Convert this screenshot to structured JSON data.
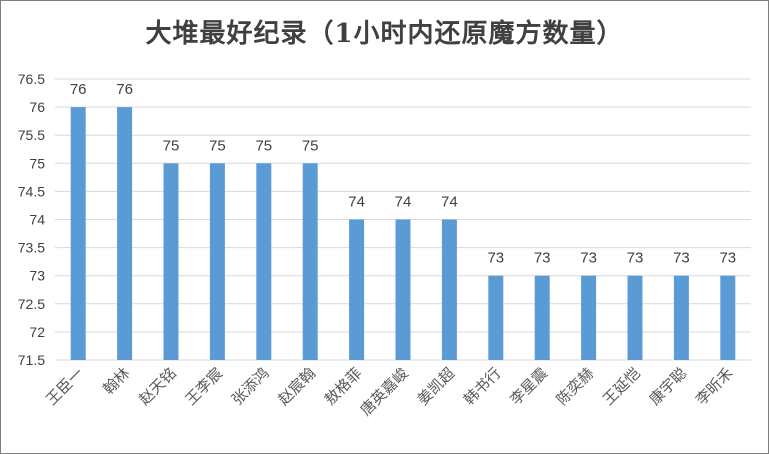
{
  "chart_data": {
    "type": "bar",
    "title": "大堆最好纪录（1小时内还原魔方数量）",
    "xlabel": "",
    "ylabel": "",
    "ylim": [
      71.5,
      76.5
    ],
    "yticks": [
      "71.5",
      "72",
      "72.5",
      "73",
      "73.5",
      "74",
      "74.5",
      "75",
      "75.5",
      "76",
      "76.5"
    ],
    "grid": true,
    "legend": "none",
    "bar_color": "#5b9bd5",
    "categories": [
      "王臣一",
      "翰林",
      "赵天铭",
      "王李宸",
      "张添鸿",
      "赵宸翰",
      "敖格菲",
      "唐英嘉峻",
      "姜凯超",
      "韩书行",
      "李星震",
      "陈奕赫",
      "王延恺",
      "康宇聪",
      "李昕禾"
    ],
    "values": [
      76,
      76,
      75,
      75,
      75,
      75,
      74,
      74,
      74,
      73,
      73,
      73,
      73,
      73,
      73
    ]
  }
}
